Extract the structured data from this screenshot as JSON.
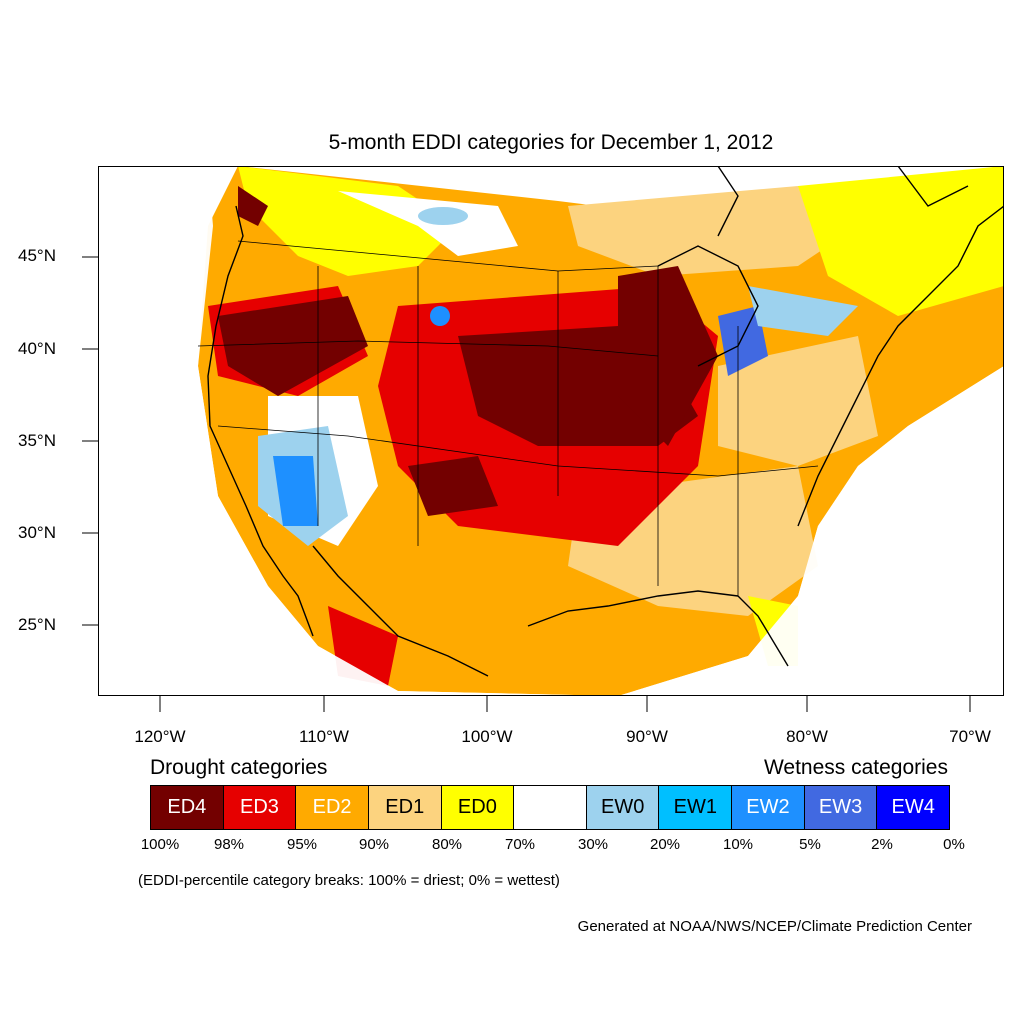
{
  "title": "5-month EDDI categories for December 1, 2012",
  "lat_labels": [
    "45°N",
    "40°N",
    "35°N",
    "30°N",
    "25°N"
  ],
  "lon_labels": [
    "120°W",
    "110°W",
    "100°W",
    "90°W",
    "80°W",
    "70°W"
  ],
  "legend": {
    "drought_heading": "Drought categories",
    "wetness_heading": "Wetness categories",
    "categories": [
      {
        "label": "ED4",
        "color": "#730000",
        "text_color": "#ffffff"
      },
      {
        "label": "ED3",
        "color": "#e60000",
        "text_color": "#ffffff"
      },
      {
        "label": "ED2",
        "color": "#ffaa00",
        "text_color": "#ffffff"
      },
      {
        "label": "ED1",
        "color": "#fcd37f",
        "text_color": "#000000"
      },
      {
        "label": "ED0",
        "color": "#ffff00",
        "text_color": "#000000"
      },
      {
        "label": "",
        "color": "#ffffff",
        "text_color": "#000000"
      },
      {
        "label": "EW0",
        "color": "#9dd2ee",
        "text_color": "#000000"
      },
      {
        "label": "EW1",
        "color": "#00bfff",
        "text_color": "#000000"
      },
      {
        "label": "EW2",
        "color": "#1e90ff",
        "text_color": "#ffffff"
      },
      {
        "label": "EW3",
        "color": "#4169e1",
        "text_color": "#ffffff"
      },
      {
        "label": "EW4",
        "color": "#0000ff",
        "text_color": "#ffffff"
      }
    ],
    "breaks": [
      "100%",
      "98%",
      "95%",
      "90%",
      "80%",
      "70%",
      "30%",
      "20%",
      "10%",
      "5%",
      "2%",
      "0%"
    ],
    "note": "(EDDI-percentile category breaks: 100% = driest; 0% = wettest)"
  },
  "credit": "Generated at NOAA/NWS/NCEP/Climate Prediction Center"
}
